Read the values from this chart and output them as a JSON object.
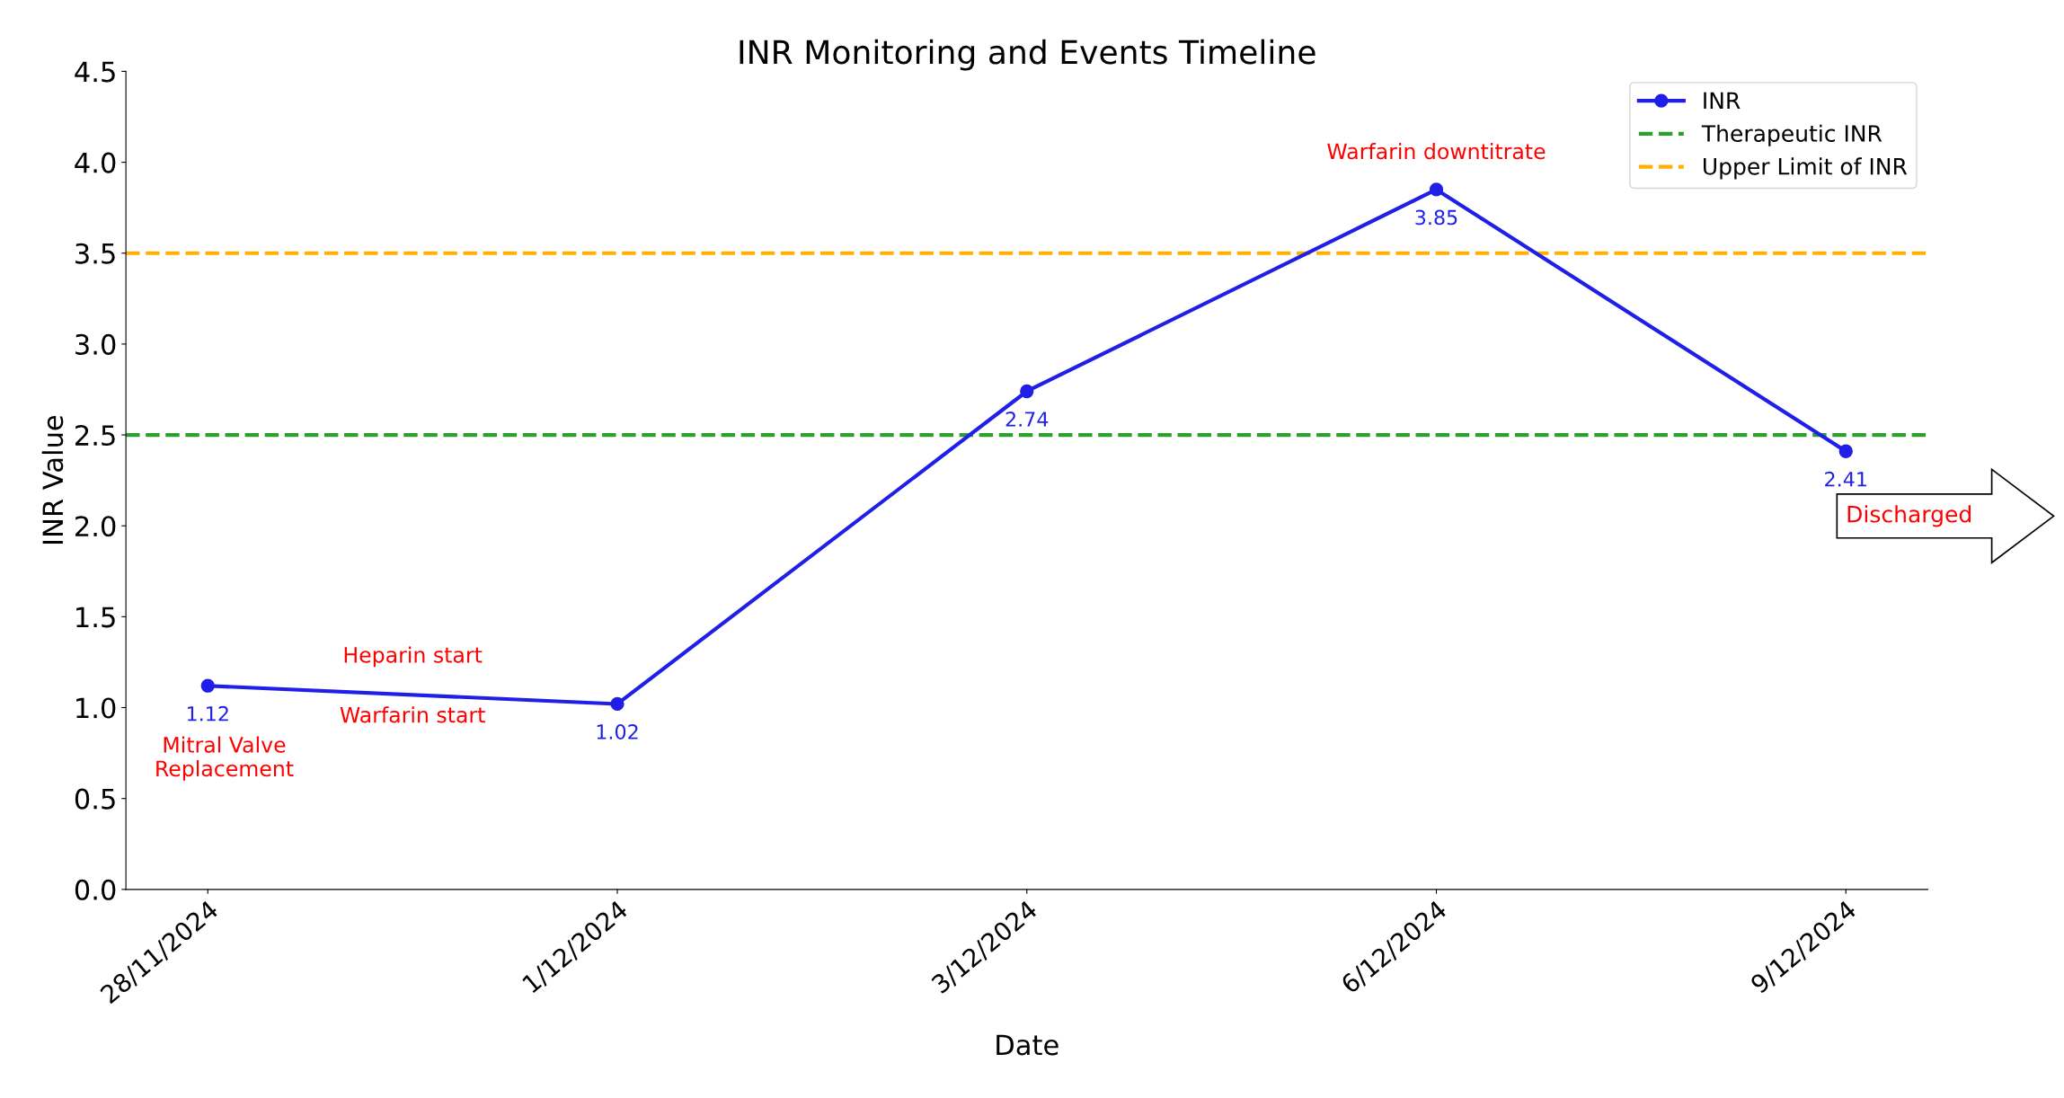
{
  "chart_data": {
    "type": "line",
    "title": "INR Monitoring and Events Timeline",
    "xlabel": "Date",
    "ylabel": "INR Value",
    "categories": [
      "28/11/2024",
      "1/12/2024",
      "3/12/2024",
      "6/12/2024",
      "9/12/2024"
    ],
    "series": [
      {
        "name": "INR",
        "color": "#1f1fe8",
        "values": [
          1.12,
          1.02,
          2.74,
          3.85,
          2.41
        ]
      }
    ],
    "ylim": [
      0,
      4.5
    ],
    "yticks": [
      {
        "value": 0,
        "label": "0.0"
      },
      {
        "value": 0.5,
        "label": "0.5"
      },
      {
        "value": 1,
        "label": "1.0"
      },
      {
        "value": 1.5,
        "label": "1.5"
      },
      {
        "value": 2,
        "label": "2.0"
      },
      {
        "value": 2.5,
        "label": "2.5"
      },
      {
        "value": 3,
        "label": "3.0"
      },
      {
        "value": 3.5,
        "label": "3.5"
      },
      {
        "value": 4,
        "label": "4.0"
      },
      {
        "value": 4.5,
        "label": "4.5"
      }
    ],
    "ref_lines": [
      {
        "axis": "y",
        "value": 2.5,
        "label": "Therapeutic INR",
        "color": "#2ca02c",
        "line_style": "dashed"
      },
      {
        "axis": "y",
        "value": 3.5,
        "label": "Upper Limit of INR",
        "color": "#ffb000",
        "line_style": "dashed"
      }
    ],
    "annotations": [
      "Mitral Valve\nReplacement",
      "Heparin start",
      "Warfarin start",
      "Warfarin downtitrate",
      "Discharged"
    ],
    "data_labels": true,
    "marker": "circle",
    "line_style": "solid",
    "legend": "top right",
    "grid": false
  }
}
